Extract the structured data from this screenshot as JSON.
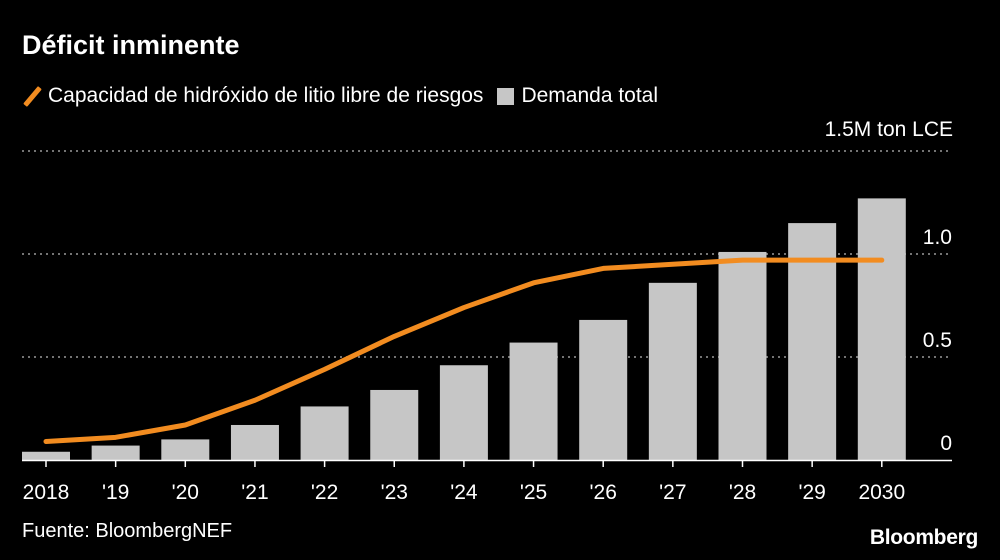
{
  "title": "Déficit inminente",
  "legend": {
    "line_label": "Capacidad de hidróxido de litio libre de riesgos",
    "bar_label": "Demanda total"
  },
  "unit_label": "1.5M ton LCE",
  "source": "Fuente: BloombergNEF",
  "brand": "Bloomberg",
  "colors": {
    "line": "#f28c20",
    "bars": "#c6c6c6",
    "grid": "#9a9a9a",
    "background": "#000000"
  },
  "chart_data": {
    "type": "bar",
    "categories": [
      "2018",
      "'19",
      "'20",
      "'21",
      "'22",
      "'23",
      "'24",
      "'25",
      "'26",
      "'27",
      "'28",
      "'29",
      "2030"
    ],
    "series": [
      {
        "name": "Demanda total",
        "type": "bar",
        "values": [
          0.04,
          0.07,
          0.1,
          0.17,
          0.26,
          0.34,
          0.46,
          0.57,
          0.68,
          0.86,
          1.01,
          1.15,
          1.27
        ]
      },
      {
        "name": "Capacidad de hidróxido de litio libre de riesgos",
        "type": "line",
        "values": [
          0.09,
          0.11,
          0.17,
          0.29,
          0.44,
          0.6,
          0.74,
          0.86,
          0.93,
          0.95,
          0.97,
          0.97,
          0.97
        ]
      }
    ],
    "y_ticks": [
      {
        "value": 0,
        "label": "0"
      },
      {
        "value": 0.5,
        "label": "0.5"
      },
      {
        "value": 1.0,
        "label": "1.0"
      },
      {
        "value": 1.5,
        "label": ""
      }
    ],
    "ylim": [
      0,
      1.5
    ],
    "grid": true,
    "legend_position": "top-left"
  }
}
